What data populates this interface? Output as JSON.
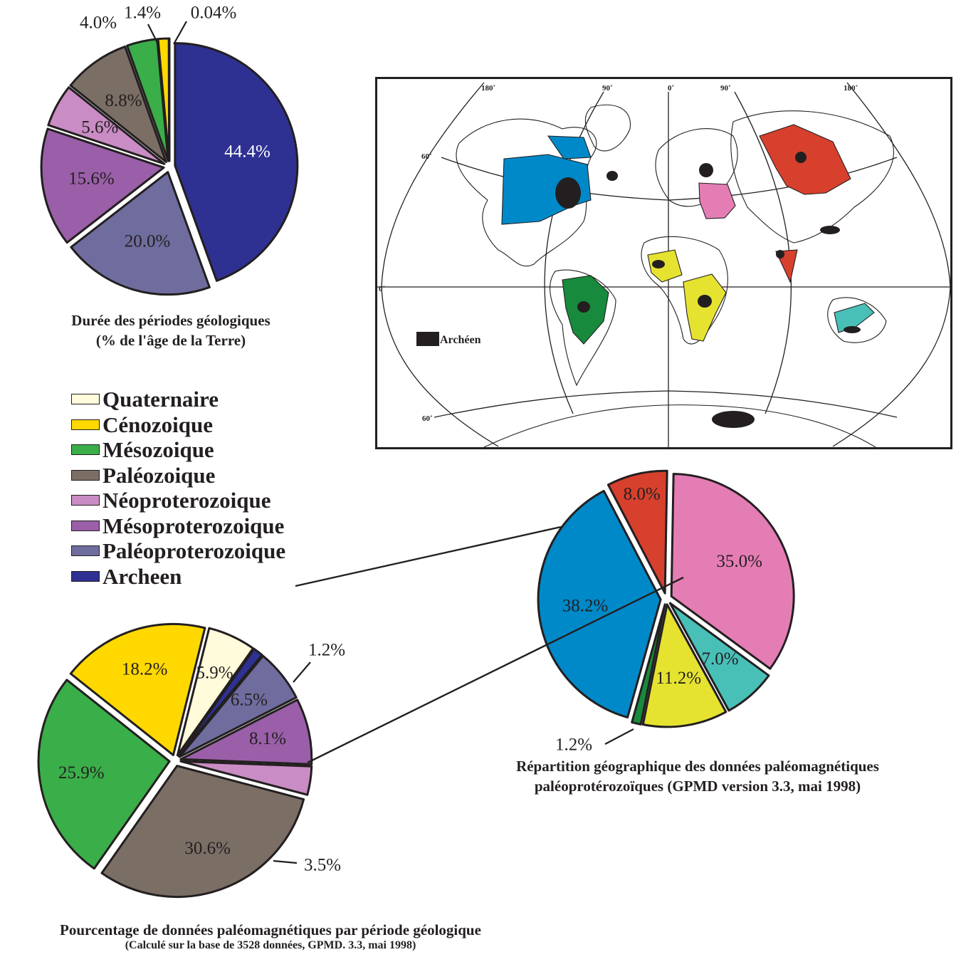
{
  "pie_duration": {
    "slices": [
      {
        "name": "Archeen",
        "value": 44.4,
        "label": "44.4%",
        "color": "#2e3192"
      },
      {
        "name": "Paléoproterozoique",
        "value": 20.0,
        "label": "20.0%",
        "color": "#6f6d9e"
      },
      {
        "name": "Mésoproterozoique",
        "value": 15.6,
        "label": "15.6%",
        "color": "#9a5fa8"
      },
      {
        "name": "Néoproterozoique",
        "value": 5.6,
        "label": "5.6%",
        "color": "#c98cc4"
      },
      {
        "name": "Paléozoique",
        "value": 8.8,
        "label": "8.8%",
        "color": "#7b6e65"
      },
      {
        "name": "Mésozoique",
        "value": 4.0,
        "label": "4.0%",
        "color": "#3aae49"
      },
      {
        "name": "Cénozoique",
        "value": 1.4,
        "label": "1.4%",
        "color": "#ffd800"
      },
      {
        "name": "Quaternaire",
        "value": 0.04,
        "label": "0.04%",
        "color": "#fffbdb"
      }
    ]
  },
  "pie_data": {
    "slices": [
      {
        "name": "Quaternaire",
        "value": 5.9,
        "label": "5.9%",
        "color": "#fffbdb"
      },
      {
        "name": "Archeen",
        "value": 1.2,
        "label": "1.2%",
        "color": "#2e3192"
      },
      {
        "name": "Paléoproterozoique",
        "value": 6.5,
        "label": "6.5%",
        "color": "#6f6d9e"
      },
      {
        "name": "Mésoproterozoique",
        "value": 8.1,
        "label": "8.1%",
        "color": "#9a5fa8"
      },
      {
        "name": "Néoproterozoique",
        "value": 3.5,
        "label": "3.5%",
        "color": "#c98cc4"
      },
      {
        "name": "Paléozoique",
        "value": 30.6,
        "label": "30.6%",
        "color": "#7b6e65"
      },
      {
        "name": "Mésozoique",
        "value": 25.9,
        "label": "25.9%",
        "color": "#3aae49"
      },
      {
        "name": "Cénozoique",
        "value": 18.2,
        "label": "18.2%",
        "color": "#ffd800"
      }
    ]
  },
  "pie_geo": {
    "slices": [
      {
        "name": "Europe",
        "value": 35.0,
        "label": "35.0%",
        "color": "#e57db5"
      },
      {
        "name": "Australia",
        "value": 7.0,
        "label": "7.0%",
        "color": "#48c0b8"
      },
      {
        "name": "Africa",
        "value": 11.2,
        "label": "11.2%",
        "color": "#e5e330"
      },
      {
        "name": "South America",
        "value": 1.2,
        "label": "1.2%",
        "color": "#178a3d"
      },
      {
        "name": "North America",
        "value": 38.2,
        "label": "38.2%",
        "color": "#0089c8"
      },
      {
        "name": "Asia",
        "value": 8.0,
        "label": "8.0%",
        "color": "#d7402d"
      }
    ]
  },
  "chart_data": [
    {
      "type": "pie",
      "title": "Durée des périodes géologiques (% de l'âge de la Terre)",
      "categories": [
        "Archeen",
        "Paléoproterozoique",
        "Mésoproterozoique",
        "Néoproterozoique",
        "Paléozoique",
        "Mésozoique",
        "Cénozoique",
        "Quaternaire"
      ],
      "values": [
        44.4,
        20.0,
        15.6,
        5.6,
        8.8,
        4.0,
        1.4,
        0.04
      ]
    },
    {
      "type": "pie",
      "title": "Pourcentage de données paléomagnétiques par période géologique",
      "subtitle": "(Calculé sur la base de 3528 données, GPMD. 3.3, mai  1998)",
      "categories": [
        "Quaternaire",
        "Archeen",
        "Paléoproterozoique",
        "Mésoproterozoique",
        "Néoproterozoique",
        "Paléozoique",
        "Mésozoique",
        "Cénozoique"
      ],
      "values": [
        5.9,
        1.2,
        6.5,
        8.1,
        3.5,
        30.6,
        25.9,
        18.2
      ]
    },
    {
      "type": "pie",
      "title": "Répartition géographique des données paléomagnétiques paléoprotérozoïques (GPMD version 3.3, mai 1998)",
      "categories": [
        "Europe",
        "Australia",
        "Africa",
        "South America",
        "North America",
        "Asia"
      ],
      "values": [
        35.0,
        7.0,
        11.2,
        1.2,
        38.2,
        8.0
      ]
    }
  ],
  "captions": {
    "duration_line1": "Durée des périodes géologiques",
    "duration_line2": "(% de l'âge de la Terre)",
    "geo_line1": "Répartition géographique des données paléomagnétiques",
    "geo_line2": "paléoprotérozoïques (GPMD version 3.3, mai 1998)",
    "data_line1": "Pourcentage de données paléomagnétiques par période géologique",
    "data_line2": "(Calculé sur la base de 3528 données, GPMD. 3.3, mai  1998)"
  },
  "legend": [
    {
      "label": "Quaternaire",
      "color": "#fffbdb"
    },
    {
      "label": "Cénozoique",
      "color": "#ffd800"
    },
    {
      "label": "Mésozoique",
      "color": "#3aae49"
    },
    {
      "label": "Paléozoique",
      "color": "#7b6e65"
    },
    {
      "label": "Néoproterozoique",
      "color": "#c98cc4"
    },
    {
      "label": "Mésoproterozoique",
      "color": "#9a5fa8"
    },
    {
      "label": "Paléoproterozoique",
      "color": "#6f6d9e"
    },
    {
      "label": "Archeen",
      "color": "#2e3192"
    }
  ],
  "map": {
    "top_labels": [
      "180˚",
      "90˚",
      "0˚",
      "90˚",
      "180˚"
    ],
    "lat_labels": [
      "60˚",
      "0˚",
      "60˚"
    ],
    "archean_legend": "Archéen",
    "archean_color": "#231f20"
  }
}
